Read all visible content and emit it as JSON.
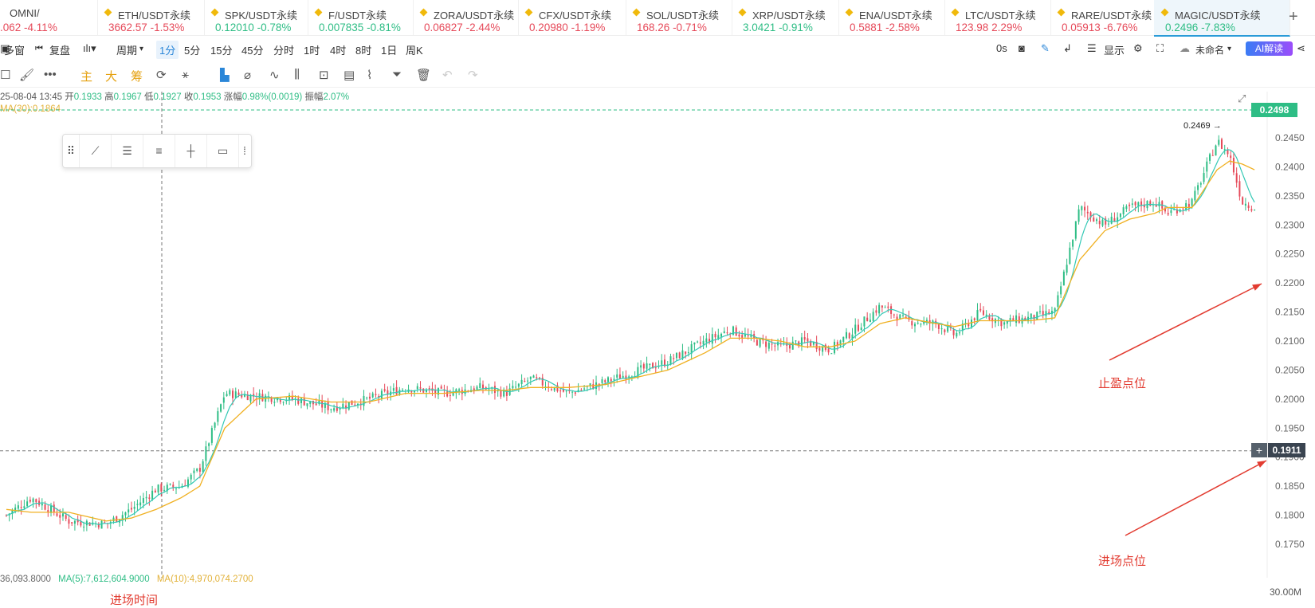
{
  "tabs": [
    {
      "name": "OMNI/",
      "price": ".062",
      "change": "-4.11%",
      "dir": "dn",
      "icon": false
    },
    {
      "name": "ETH/USDT永续",
      "price": "3662.57",
      "change": "-1.53%",
      "dir": "dn",
      "icon": true
    },
    {
      "name": "SPK/USDT永续",
      "price": "0.12010",
      "change": "-0.78%",
      "dir": "up",
      "icon": true
    },
    {
      "name": "F/USDT永续",
      "price": "0.007835",
      "change": "-0.81%",
      "dir": "up",
      "icon": true
    },
    {
      "name": "ZORA/USDT永续",
      "price": "0.06827",
      "change": "-2.44%",
      "dir": "dn",
      "icon": true
    },
    {
      "name": "CFX/USDT永续",
      "price": "0.20980",
      "change": "-1.19%",
      "dir": "dn",
      "icon": true
    },
    {
      "name": "SOL/USDT永续",
      "price": "168.26",
      "change": "-0.71%",
      "dir": "dn",
      "icon": true
    },
    {
      "name": "XRP/USDT永续",
      "price": "3.0421",
      "change": "-0.91%",
      "dir": "up",
      "icon": true
    },
    {
      "name": "ENA/USDT永续",
      "price": "0.5881",
      "change": "-2.58%",
      "dir": "dn",
      "icon": true
    },
    {
      "name": "LTC/USDT永续",
      "price": "123.98",
      "change": "2.29%",
      "dir": "dn",
      "icon": true
    },
    {
      "name": "RARE/USDT永续",
      "price": "0.05913",
      "change": "-6.76%",
      "dir": "dn",
      "icon": true
    },
    {
      "name": "MAGIC/USDT永续",
      "price": "0.2496",
      "change": "-7.83%",
      "dir": "up",
      "icon": true
    }
  ],
  "toolbar": {
    "multi_window": "多窗",
    "replay": "复盘",
    "period": "周期",
    "intervals": [
      "1分",
      "5分",
      "15分",
      "45分",
      "分时",
      "1时",
      "4时",
      "8时",
      "1日",
      "周K"
    ],
    "countdown": "0s",
    "display": "显示",
    "unnamed": "未命名",
    "ai": "AI解读"
  },
  "indicators_toolbar": {
    "main": "主",
    "big": "大",
    "chip": "筹"
  },
  "ohlc": {
    "date": "25-08-04 13:45",
    "open_label": "开",
    "open": "0.1933",
    "high_label": "高",
    "high": "0.1967",
    "low_label": "低",
    "low": "0.1927",
    "close_label": "收",
    "close": "0.1953",
    "change_label": "涨幅",
    "change": "0.98%(0.0019)",
    "amp_label": "振幅",
    "amp": "2.07%"
  },
  "ma30_label": "MA(30):0.1864",
  "volume": {
    "vol": "36,093.8000",
    "ma5": "MA(5):7,612,604.9000",
    "ma10": "MA(10):4,970,074.2700",
    "scale": "30.00M"
  },
  "annotations": {
    "take_profit": "止盈点位",
    "entry_price": "进场点位",
    "entry_time": "进场时间"
  },
  "price_tags": {
    "current": "0.2498",
    "crosshair": "0.1911",
    "high_marker": "0.2469"
  },
  "colors": {
    "up": "#2ebd85",
    "down": "#e64a5a",
    "ma_fast": "#34c9b5",
    "ma_slow": "#f0b020",
    "accent": "#2a86d8",
    "annotation": "#e23b30"
  },
  "chart_data": {
    "type": "candlestick",
    "title": "MAGIC/USDT永续 1分",
    "ylim": [
      0.17,
      0.251
    ],
    "y_ticks": [
      "0.1750",
      "0.1800",
      "0.1850",
      "0.1900",
      "0.1950",
      "0.2000",
      "0.2050",
      "0.2100",
      "0.2150",
      "0.2200",
      "0.2250",
      "0.2300",
      "0.2350",
      "0.2400",
      "0.2450"
    ],
    "close_path_x": [
      0,
      0.02,
      0.05,
      0.08,
      0.1,
      0.12,
      0.14,
      0.155,
      0.175,
      0.2,
      0.23,
      0.26,
      0.29,
      0.32,
      0.35,
      0.38,
      0.4,
      0.42,
      0.45,
      0.48,
      0.5,
      0.53,
      0.56,
      0.58,
      0.6,
      0.62,
      0.64,
      0.66,
      0.68,
      0.7,
      0.72,
      0.745,
      0.76,
      0.78,
      0.8,
      0.805,
      0.82,
      0.84,
      0.86,
      0.88,
      0.9,
      0.92,
      0.93,
      0.95,
      0.97,
      0.98,
      0.99,
      1.0
    ],
    "close_path_y": [
      0.18,
      0.183,
      0.179,
      0.1785,
      0.181,
      0.1845,
      0.185,
      0.188,
      0.201,
      0.2005,
      0.2,
      0.1985,
      0.2,
      0.202,
      0.201,
      0.202,
      0.201,
      0.2035,
      0.201,
      0.203,
      0.2045,
      0.2065,
      0.21,
      0.212,
      0.21,
      0.209,
      0.21,
      0.2085,
      0.212,
      0.216,
      0.2135,
      0.213,
      0.211,
      0.215,
      0.213,
      0.2135,
      0.214,
      0.215,
      0.233,
      0.23,
      0.233,
      0.234,
      0.232,
      0.234,
      0.2445,
      0.242,
      0.234,
      0.233
    ],
    "ma_slow_y": [
      0.181,
      0.1805,
      0.1805,
      0.179,
      0.1795,
      0.181,
      0.183,
      0.185,
      0.195,
      0.2,
      0.2005,
      0.1995,
      0.1995,
      0.201,
      0.201,
      0.2015,
      0.2015,
      0.202,
      0.202,
      0.2025,
      0.2035,
      0.205,
      0.208,
      0.2105,
      0.2105,
      0.21,
      0.209,
      0.209,
      0.21,
      0.213,
      0.214,
      0.213,
      0.2125,
      0.2135,
      0.2135,
      0.2135,
      0.2135,
      0.214,
      0.224,
      0.229,
      0.231,
      0.232,
      0.233,
      0.233,
      0.2395,
      0.241,
      0.2405,
      0.2395
    ]
  }
}
